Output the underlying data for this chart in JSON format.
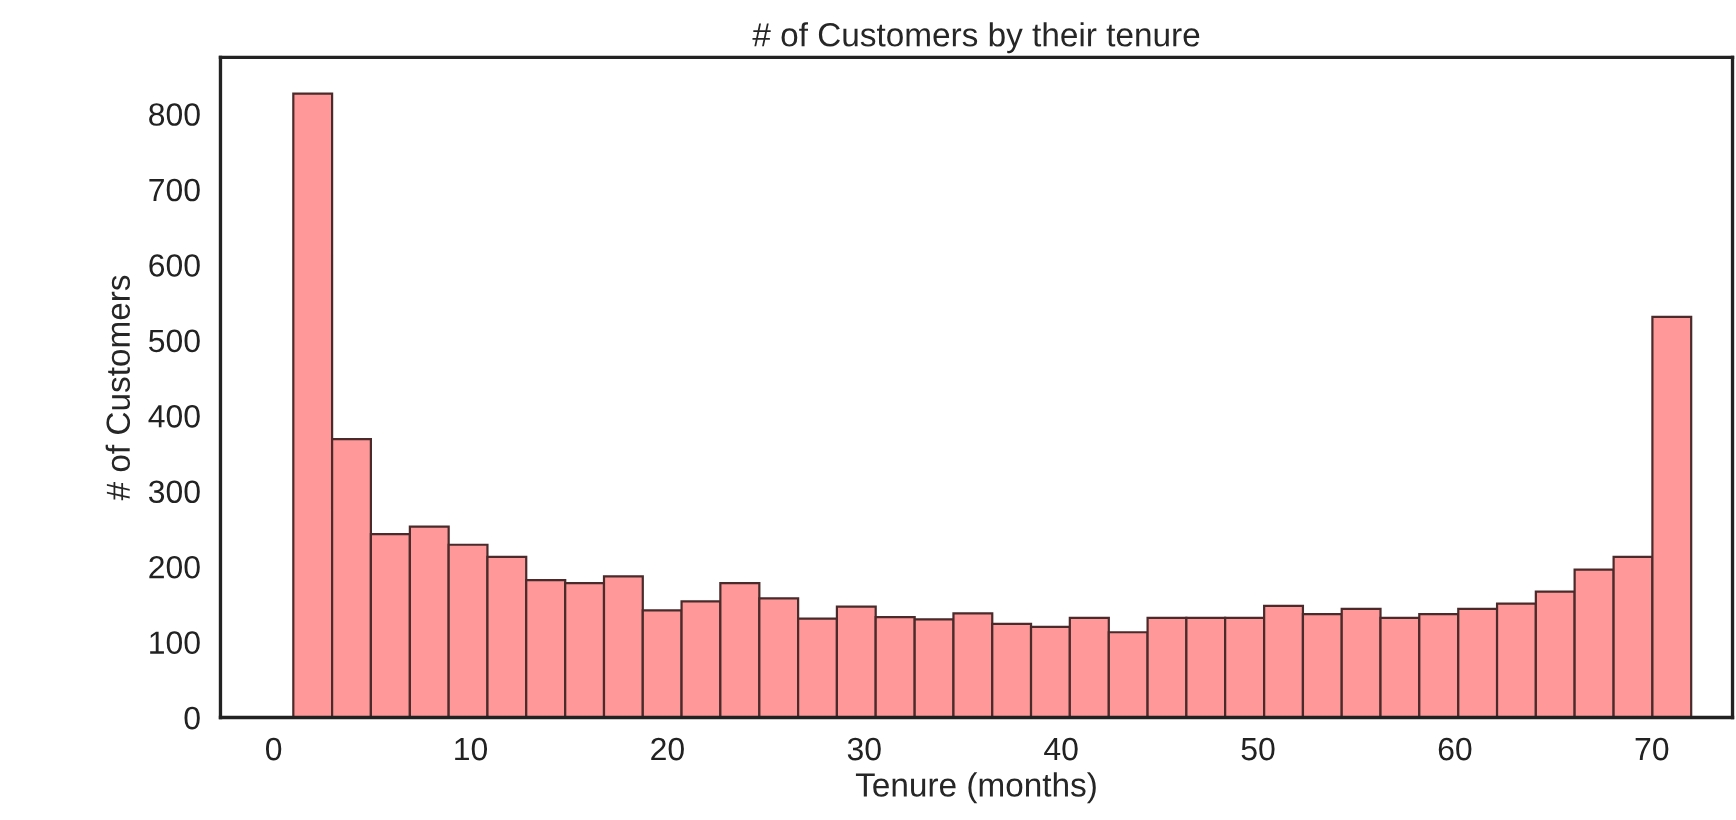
{
  "chart_data": {
    "type": "histogram",
    "title": "# of Customers by their tenure",
    "xlabel": "Tenure (months)",
    "ylabel": "# of Customers",
    "bins": [
      1,
      2.97,
      4.94,
      6.92,
      8.89,
      10.86,
      12.83,
      14.81,
      16.78,
      18.75,
      20.72,
      22.69,
      24.67,
      26.64,
      28.61,
      30.58,
      32.56,
      34.53,
      36.5,
      38.47,
      40.44,
      42.42,
      44.39,
      46.36,
      48.33,
      50.31,
      52.28,
      54.25,
      56.22,
      58.19,
      60.17,
      62.14,
      64.11,
      66.08,
      68.06,
      70.03,
      72
    ],
    "values": [
      827,
      369,
      243,
      253,
      229,
      213,
      182,
      178,
      187,
      142,
      154,
      178,
      158,
      131,
      147,
      133,
      130,
      138,
      124,
      120,
      132,
      113,
      132,
      132,
      132,
      148,
      137,
      144,
      132,
      137,
      144,
      151,
      167,
      196,
      213,
      531
    ],
    "color": "#ff9999",
    "xlim": [
      -2.7,
      74.1
    ],
    "ylim": [
      0,
      875
    ],
    "xticks": [
      0,
      10,
      20,
      30,
      40,
      50,
      60,
      70
    ],
    "yticks": [
      0,
      100,
      200,
      300,
      400,
      500,
      600,
      700,
      800
    ],
    "grid": false
  }
}
